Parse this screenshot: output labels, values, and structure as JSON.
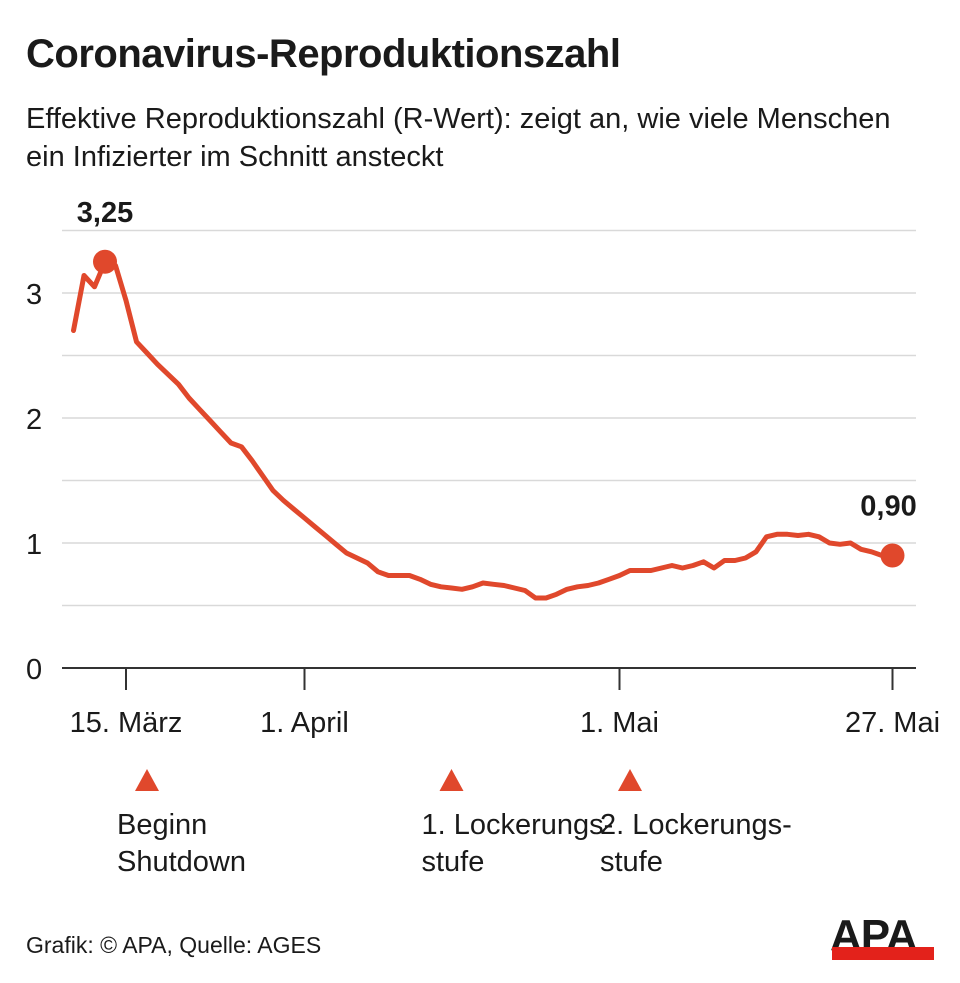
{
  "title": "Coronavirus-Reproduktionszahl",
  "subtitle": "Effektive Reproduktionszahl (R-Wert): zeigt an, wie viele Menschen ein Infizierter im Schnitt ansteckt",
  "source": "Grafik: © APA, Quelle: AGES",
  "logo_text": "APA",
  "colors": {
    "line": "#e0482c",
    "grid": "#d9d9d9",
    "axis": "#333333",
    "logo_red": "#e3221b"
  },
  "chart_data": {
    "type": "line",
    "title": "Coronavirus-Reproduktionszahl",
    "xlabel": "",
    "ylabel": "",
    "ylim": [
      0,
      3.5
    ],
    "yticks": [
      0,
      1,
      2,
      3
    ],
    "ytick_labels": [
      "0",
      "1",
      "2",
      "3"
    ],
    "grid": true,
    "grid_step": 0.5,
    "xticks": [
      {
        "date": "15.03",
        "label": "15. März"
      },
      {
        "date": "01.04",
        "label": "1. April"
      },
      {
        "date": "01.05",
        "label": "1. Mai"
      },
      {
        "date": "27.05",
        "label": "27. Mai"
      }
    ],
    "x": [
      "10.03",
      "11.03",
      "12.03",
      "13.03",
      "14.03",
      "15.03",
      "16.03",
      "17.03",
      "18.03",
      "19.03",
      "20.03",
      "21.03",
      "22.03",
      "23.03",
      "24.03",
      "25.03",
      "26.03",
      "27.03",
      "28.03",
      "29.03",
      "30.03",
      "31.03",
      "01.04",
      "02.04",
      "03.04",
      "04.04",
      "05.04",
      "06.04",
      "07.04",
      "08.04",
      "09.04",
      "10.04",
      "11.04",
      "12.04",
      "13.04",
      "14.04",
      "15.04",
      "16.04",
      "17.04",
      "18.04",
      "19.04",
      "20.04",
      "21.04",
      "22.04",
      "23.04",
      "24.04",
      "25.04",
      "26.04",
      "27.04",
      "28.04",
      "29.04",
      "30.04",
      "01.05",
      "02.05",
      "03.05",
      "04.05",
      "05.05",
      "06.05",
      "07.05",
      "08.05",
      "09.05",
      "10.05",
      "11.05",
      "12.05",
      "13.05",
      "14.05",
      "15.05",
      "16.05",
      "17.05",
      "18.05",
      "19.05",
      "20.05",
      "21.05",
      "22.05",
      "23.05",
      "24.05",
      "25.05",
      "26.05",
      "27.05"
    ],
    "series": [
      {
        "values": [
          2.7,
          3.14,
          3.05,
          3.25,
          3.22,
          2.94,
          2.61,
          2.52,
          2.43,
          2.35,
          2.27,
          2.16,
          2.07,
          1.98,
          1.89,
          1.8,
          1.77,
          1.66,
          1.54,
          1.42,
          1.34,
          1.27,
          1.2,
          1.13,
          1.06,
          0.99,
          0.92,
          0.88,
          0.84,
          0.77,
          0.74,
          0.74,
          0.74,
          0.71,
          0.67,
          0.65,
          0.64,
          0.63,
          0.65,
          0.68,
          0.67,
          0.66,
          0.64,
          0.62,
          0.56,
          0.56,
          0.59,
          0.63,
          0.65,
          0.66,
          0.68,
          0.71,
          0.74,
          0.78,
          0.78,
          0.78,
          0.8,
          0.82,
          0.8,
          0.82,
          0.85,
          0.8,
          0.86,
          0.86,
          0.88,
          0.93,
          1.05,
          1.07,
          1.07,
          1.06,
          1.07,
          1.05,
          1.0,
          0.99,
          1.0,
          0.95,
          0.93,
          0.9,
          0.9
        ]
      }
    ],
    "annotations": [
      {
        "date": "13.03",
        "value": 3.25,
        "label": "3,25"
      },
      {
        "date": "27.05",
        "value": 0.9,
        "label": "0,90"
      }
    ],
    "events": [
      {
        "date": "17.03",
        "label": "Beginn\nShutdown"
      },
      {
        "date": "15.04",
        "label": "1. Lockerungs-\nstufe"
      },
      {
        "date": "02.05",
        "label": "2. Lockerungs-\nstufe"
      }
    ]
  }
}
